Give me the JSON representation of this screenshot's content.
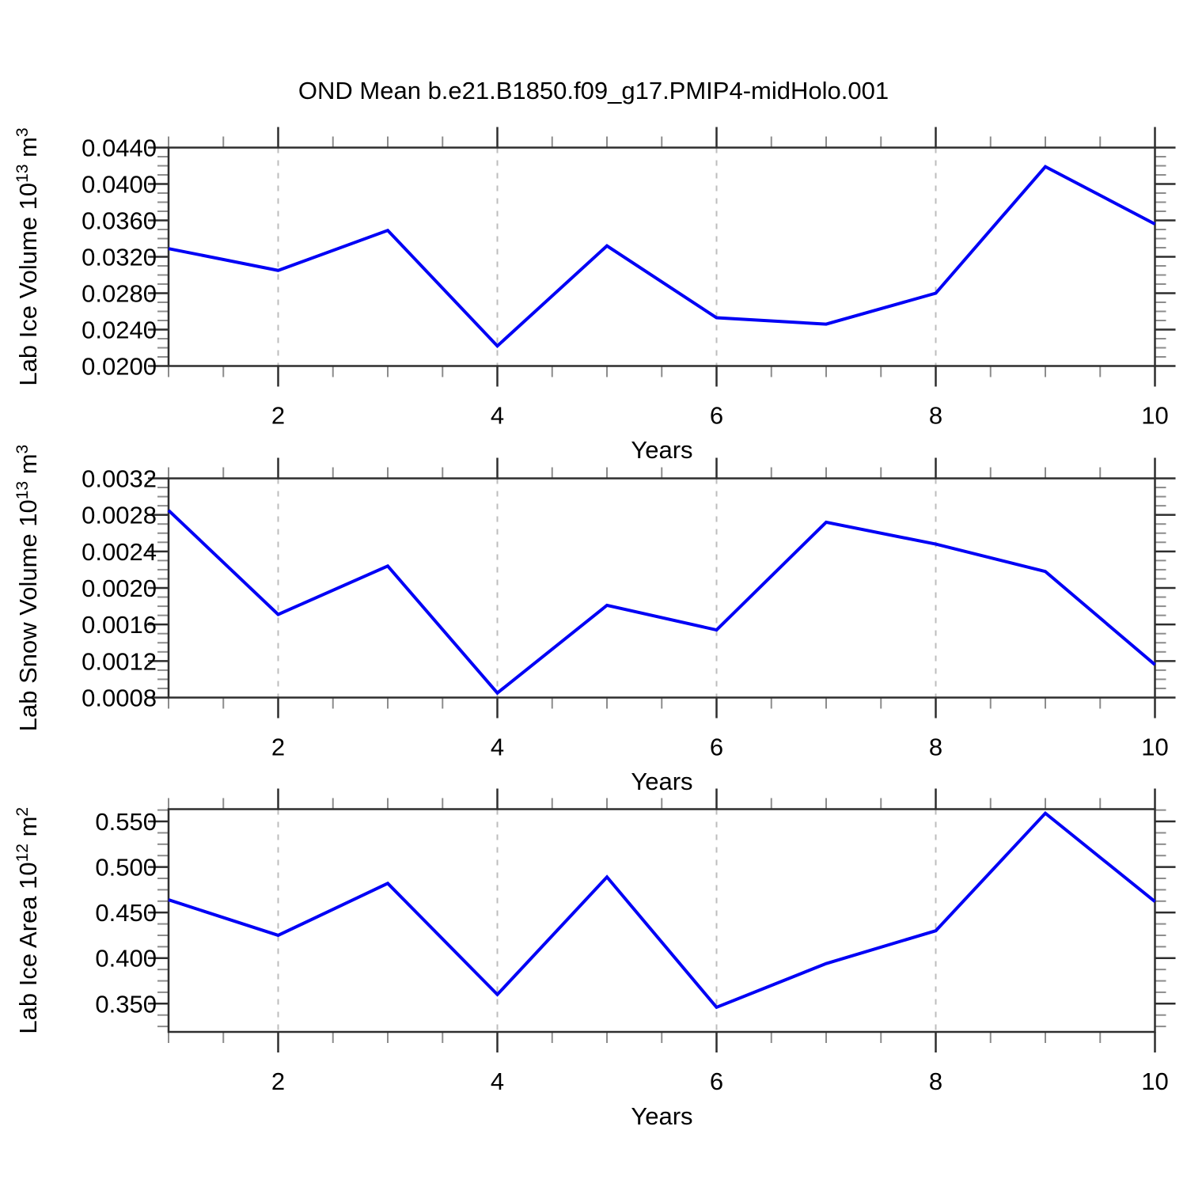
{
  "title": "OND Mean b.e21.B1850.f09_g17.PMIP4-midHolo.001",
  "colors": {
    "line": "#0000f5",
    "axis": "#2e2e2e",
    "major_tick": "#2e2e2e",
    "minor_tick": "#8c8c8c",
    "grid": "#bdbdbd",
    "text": "#000000",
    "background": "#ffffff"
  },
  "chart_data": [
    {
      "type": "line",
      "title": "",
      "xlabel": "Years",
      "ylabel": "Lab Ice Volume 10^13 m^3",
      "ylabel_parts": [
        {
          "t": "Lab Ice Volume 10"
        },
        {
          "sup": "13"
        },
        {
          "t": " m"
        },
        {
          "sup": "3"
        }
      ],
      "x": [
        1,
        2,
        3,
        4,
        5,
        6,
        7,
        8,
        9,
        10
      ],
      "values": [
        0.0329,
        0.0305,
        0.0349,
        0.0222,
        0.0332,
        0.0253,
        0.0246,
        0.028,
        0.0419,
        0.0356
      ],
      "xlim": [
        1,
        10
      ],
      "xticks": [
        2,
        4,
        6,
        8,
        10
      ],
      "xtick_labels": [
        "2",
        "4",
        "6",
        "8",
        "10"
      ],
      "x_minor_step": 0.5,
      "grid_x": [
        2,
        4,
        6,
        8
      ],
      "ylim": [
        0.02,
        0.044
      ],
      "yticks": [
        0.02,
        0.024,
        0.028,
        0.032,
        0.036,
        0.04,
        0.044
      ],
      "ytick_labels": [
        "0.0200",
        "0.0240",
        "0.0280",
        "0.0320",
        "0.0360",
        "0.0400",
        "0.0440"
      ],
      "y_minor_step": 0.001,
      "grid_on": "x-dashed"
    },
    {
      "type": "line",
      "title": "",
      "xlabel": "Years",
      "ylabel": "Lab Snow Volume 10^13 m^3",
      "ylabel_parts": [
        {
          "t": "Lab Snow Volume 10"
        },
        {
          "sup": "13"
        },
        {
          "t": " m"
        },
        {
          "sup": "3"
        }
      ],
      "x": [
        1,
        2,
        3,
        4,
        5,
        6,
        7,
        8,
        9,
        10
      ],
      "values": [
        0.00285,
        0.00171,
        0.00224,
        0.00085,
        0.00181,
        0.00154,
        0.00272,
        0.00248,
        0.00218,
        0.00116
      ],
      "xlim": [
        1,
        10
      ],
      "xticks": [
        2,
        4,
        6,
        8,
        10
      ],
      "xtick_labels": [
        "2",
        "4",
        "6",
        "8",
        "10"
      ],
      "x_minor_step": 0.5,
      "grid_x": [
        2,
        4,
        6,
        8
      ],
      "ylim": [
        0.0008,
        0.0032
      ],
      "yticks": [
        0.0008,
        0.0012,
        0.0016,
        0.002,
        0.0024,
        0.0028,
        0.0032
      ],
      "ytick_labels": [
        "0.0008",
        "0.0012",
        "0.0016",
        "0.0020",
        "0.0024",
        "0.0028",
        "0.0032"
      ],
      "y_minor_step": 0.0001,
      "grid_on": "x-dashed"
    },
    {
      "type": "line",
      "title": "",
      "xlabel": "Years",
      "ylabel": "Lab Ice Area 10^12 m^2",
      "ylabel_parts": [
        {
          "t": "Lab Ice Area 10"
        },
        {
          "sup": "12"
        },
        {
          "t": " m"
        },
        {
          "sup": "2"
        }
      ],
      "x": [
        1,
        2,
        3,
        4,
        5,
        6,
        7,
        8,
        9,
        10
      ],
      "values": [
        0.464,
        0.425,
        0.482,
        0.36,
        0.489,
        0.346,
        0.394,
        0.43,
        0.559,
        0.462
      ],
      "xlim": [
        1,
        10
      ],
      "xticks": [
        2,
        4,
        6,
        8,
        10
      ],
      "xtick_labels": [
        "2",
        "4",
        "6",
        "8",
        "10"
      ],
      "x_minor_step": 0.5,
      "grid_x": [
        2,
        4,
        6,
        8
      ],
      "ylim": [
        0.319,
        0.5635
      ],
      "yticks": [
        0.35,
        0.4,
        0.45,
        0.5,
        0.55
      ],
      "ytick_labels": [
        "0.350",
        "0.400",
        "0.450",
        "0.500",
        "0.550"
      ],
      "y_minor_step": 0.0125,
      "grid_on": "x-dashed"
    }
  ]
}
